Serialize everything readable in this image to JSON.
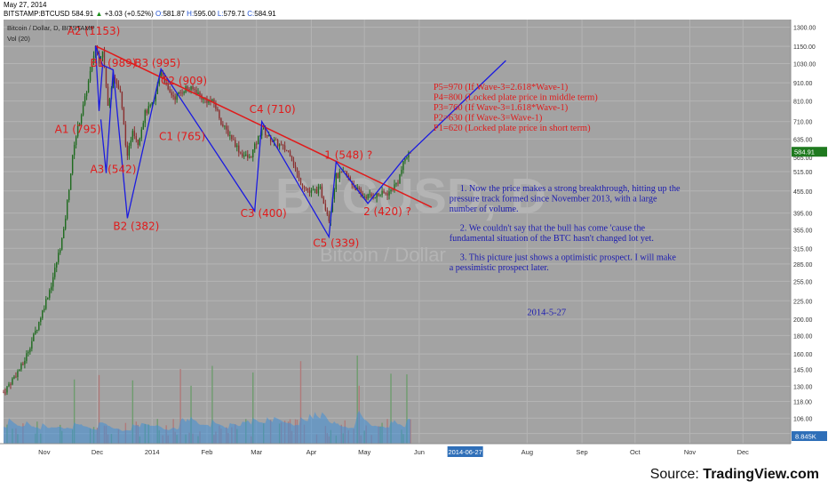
{
  "header": {
    "date": "May 27, 2014",
    "symbol": "BITSTAMP:BTCUSD",
    "last": "584.91",
    "change": "+3.03 (+0.52%)",
    "o_label": "O:",
    "open": "581.87",
    "h_label": "H:",
    "high": "595.00",
    "l_label": "L:",
    "low": "579.71",
    "c_label": "C:",
    "close": "584.91"
  },
  "chart_data": {
    "type": "candlestick",
    "title": "Bitcoin / Dollar, D, BITSTAMP",
    "volume_label": "Vol (20)",
    "watermark": "BTCUSD, D",
    "watermark_sub": "Bitcoin / Dollar",
    "y_scale": "log",
    "ylim": [
      90,
      1350
    ],
    "xlim": [
      "2013-10-09",
      "2014-12-28"
    ],
    "y_ticks": [
      "1300.00",
      "1150.00",
      "1030.00",
      "910.00",
      "810.00",
      "710.00",
      "635.00",
      "565.00",
      "515.00",
      "455.00",
      "395.00",
      "355.00",
      "315.00",
      "285.00",
      "255.00",
      "225.00",
      "200.00",
      "180.00",
      "160.00",
      "145.00",
      "130.00",
      "118.00",
      "106.00",
      "96.00"
    ],
    "x_ticks": [
      {
        "label": "Nov",
        "date": "2013-11-01"
      },
      {
        "label": "Dec",
        "date": "2013-12-01"
      },
      {
        "label": "2014",
        "date": "2014-01-01"
      },
      {
        "label": "Feb",
        "date": "2014-02-01"
      },
      {
        "label": "Mar",
        "date": "2014-03-01"
      },
      {
        "label": "Apr",
        "date": "2014-04-01"
      },
      {
        "label": "May",
        "date": "2014-05-01"
      },
      {
        "label": "Jun",
        "date": "2014-06-01"
      },
      {
        "label": "Aug",
        "date": "2014-08-01"
      },
      {
        "label": "Sep",
        "date": "2014-09-01"
      },
      {
        "label": "Oct",
        "date": "2014-10-01"
      },
      {
        "label": "Nov",
        "date": "2014-11-01"
      },
      {
        "label": "Dec",
        "date": "2014-12-01"
      }
    ],
    "x_cursor_label": "2014-06-27",
    "x_cursor_date": "2014-06-27",
    "last_price_label": "584.91",
    "last_price": 584.91,
    "volume_last_label": "8.845K",
    "price_path": [
      [
        "2013-10-09",
        125
      ],
      [
        "2013-10-20",
        150
      ],
      [
        "2013-10-28",
        190
      ],
      [
        "2013-11-05",
        250
      ],
      [
        "2013-11-12",
        350
      ],
      [
        "2013-11-18",
        620
      ],
      [
        "2013-11-24",
        820
      ],
      [
        "2013-11-30",
        1153
      ],
      [
        "2013-12-02",
        1050
      ],
      [
        "2013-12-04",
        1130
      ],
      [
        "2013-12-07",
        780
      ],
      [
        "2013-12-10",
        960
      ],
      [
        "2013-12-14",
        850
      ],
      [
        "2013-12-18",
        560
      ],
      [
        "2013-12-21",
        680
      ],
      [
        "2013-12-24",
        620
      ],
      [
        "2013-12-28",
        750
      ],
      [
        "2014-01-02",
        800
      ],
      [
        "2014-01-06",
        995
      ],
      [
        "2014-01-10",
        860
      ],
      [
        "2014-01-14",
        830
      ],
      [
        "2014-01-20",
        880
      ],
      [
        "2014-01-25",
        870
      ],
      [
        "2014-01-30",
        820
      ],
      [
        "2014-02-05",
        800
      ],
      [
        "2014-02-10",
        690
      ],
      [
        "2014-02-15",
        640
      ],
      [
        "2014-02-20",
        580
      ],
      [
        "2014-02-25",
        560
      ],
      [
        "2014-03-01",
        620
      ],
      [
        "2014-03-04",
        680
      ],
      [
        "2014-03-08",
        640
      ],
      [
        "2014-03-14",
        610
      ],
      [
        "2014-03-20",
        580
      ],
      [
        "2014-03-25",
        490
      ],
      [
        "2014-03-31",
        450
      ],
      [
        "2014-04-06",
        460
      ],
      [
        "2014-04-11",
        380
      ],
      [
        "2014-04-15",
        500
      ],
      [
        "2014-04-20",
        510
      ],
      [
        "2014-04-25",
        470
      ],
      [
        "2014-04-30",
        440
      ],
      [
        "2014-05-05",
        440
      ],
      [
        "2014-05-10",
        445
      ],
      [
        "2014-05-15",
        450
      ],
      [
        "2014-05-20",
        485
      ],
      [
        "2014-05-24",
        560
      ],
      [
        "2014-05-27",
        584.91
      ]
    ],
    "wave_path": [
      {
        "date": "2013-11-30",
        "value": 1153
      },
      {
        "date": "2013-12-04",
        "value": 1020
      },
      {
        "date": "2013-12-10",
        "value": 989
      },
      {
        "date": "2013-12-18",
        "value": 382
      },
      {
        "date": "2014-01-06",
        "value": 995
      },
      {
        "date": "2014-02-28",
        "value": 400
      },
      {
        "date": "2014-03-04",
        "value": 710
      },
      {
        "date": "2014-04-11",
        "value": 339
      },
      {
        "date": "2014-04-15",
        "value": 548
      },
      {
        "date": "2014-05-03",
        "value": 420
      },
      {
        "date": "2014-05-24",
        "value": 565
      },
      {
        "date": "2014-07-20",
        "value": 1050
      }
    ],
    "extra_waves": [
      {
        "points": [
          {
            "date": "2013-11-30",
            "value": 1153
          },
          {
            "date": "2013-12-02",
            "value": 760
          },
          {
            "date": "2013-12-04",
            "value": 1020
          }
        ]
      },
      {
        "points": [
          {
            "date": "2013-12-10",
            "value": 989
          },
          {
            "date": "2013-12-06",
            "value": 510
          },
          {
            "date": "2013-12-03",
            "value": 720
          }
        ]
      }
    ],
    "trendline": [
      {
        "date": "2013-11-30",
        "value": 1153
      },
      {
        "date": "2014-06-08",
        "value": 410
      }
    ],
    "wave_labels": [
      {
        "text": "A2 (1153)",
        "date": "2013-11-29",
        "value": 1240
      },
      {
        "text": "B1 (989)",
        "date": "2013-12-10",
        "value": 1010
      },
      {
        "text": "B3 (995)",
        "date": "2014-01-04",
        "value": 1010
      },
      {
        "text": "C2 (909)",
        "date": "2014-01-19",
        "value": 900
      },
      {
        "text": "A1 (795)",
        "date": "2013-11-20",
        "value": 660
      },
      {
        "text": "C1 (765)",
        "date": "2014-01-18",
        "value": 630
      },
      {
        "text": "C4 (710)",
        "date": "2014-03-10",
        "value": 750
      },
      {
        "text": "1 (548) ?",
        "date": "2014-04-22",
        "value": 560
      },
      {
        "text": "A3 (542)",
        "date": "2013-12-10",
        "value": 510
      },
      {
        "text": "C3 (400)",
        "date": "2014-03-05",
        "value": 385
      },
      {
        "text": "2 (420) ?",
        "date": "2014-05-14",
        "value": 390
      },
      {
        "text": "B2 (382)",
        "date": "2013-12-23",
        "value": 355
      },
      {
        "text": "C5 (339)",
        "date": "2014-04-15",
        "value": 318
      }
    ],
    "targets": [
      "P5=970 (If Wave-3=2.618*Wave-1)",
      "P4=800 (Locked plate price in middle term)",
      "P3=760 (If Wave-3=1.618*Wave-1)",
      "P2=630 (If Wave-3=Wave-1)",
      "P1=620 (Locked plate price in short term)"
    ],
    "notes": [
      [
        "1. Now the price makes a strong breakthrough, hitting up the",
        "pressure track formed since November 2013, with a large",
        "number of volume."
      ],
      [
        "2. We couldn't say that the bull has come 'cause the",
        "fundamental situation of the BTC hasn't changed lot yet."
      ],
      [
        "3. This picture just shows a optimistic prospect. I will make",
        "a pessimistic prospect later."
      ]
    ],
    "note_date": "2014-5-27",
    "colors": {
      "background": "#a3a3a3",
      "candle_up": "#1f6b1f",
      "candle_down": "#8a2f2f",
      "wave_line": "#1b1be0",
      "trendline": "#e01b1b",
      "annotation": "#e01b1b",
      "notes_text": "#1b1bb0",
      "volume_area": "#3f8fd8"
    }
  },
  "footer": {
    "source_prefix": "Source: ",
    "source_brand": "TradingView.com"
  }
}
